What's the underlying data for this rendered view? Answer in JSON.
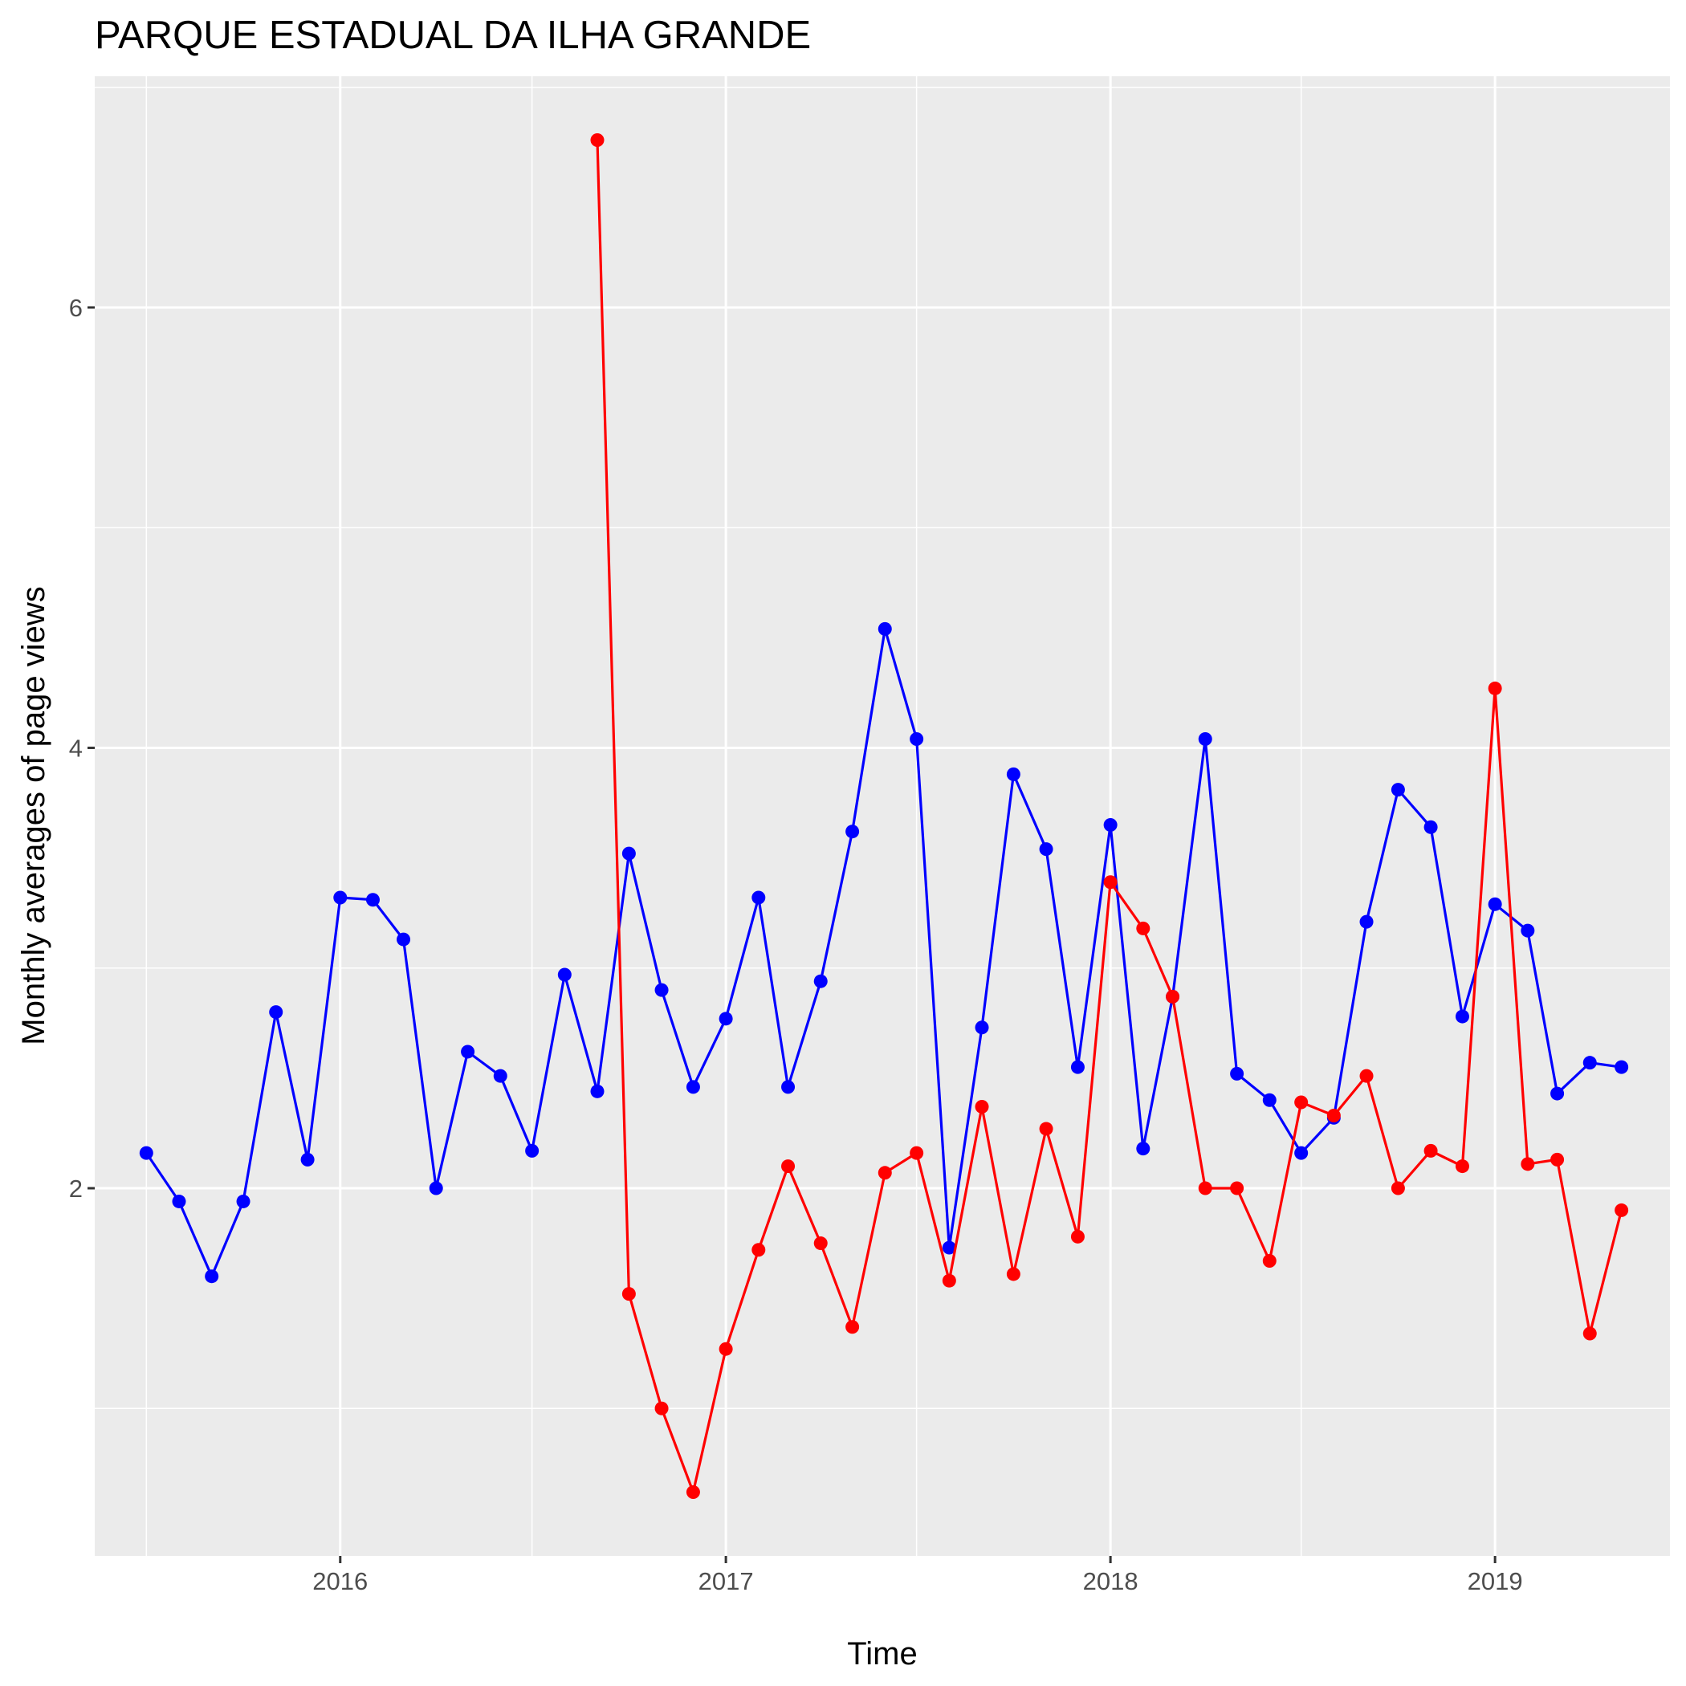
{
  "chart_data": {
    "type": "line",
    "title": "PARQUE ESTADUAL DA ILHA GRANDE",
    "xlabel": "Time",
    "ylabel": "Monthly averages of page views",
    "x_ticks": [
      "2016",
      "2017",
      "2018",
      "2019"
    ],
    "y_ticks": [
      2,
      4,
      6
    ],
    "xlim": [
      "2015-05-13",
      "2019-06-16"
    ],
    "ylim": [
      0.33,
      7.05
    ],
    "grid": true,
    "legend": "none",
    "series": [
      {
        "color": "#0000ff",
        "points": [
          [
            "2015-07-01",
            2.16
          ],
          [
            "2015-08-01",
            1.94
          ],
          [
            "2015-09-01",
            1.6
          ],
          [
            "2015-10-01",
            1.94
          ],
          [
            "2015-11-01",
            2.8
          ],
          [
            "2015-12-01",
            2.13
          ],
          [
            "2016-01-01",
            3.32
          ],
          [
            "2016-02-01",
            3.31
          ],
          [
            "2016-03-01",
            3.13
          ],
          [
            "2016-04-01",
            2.0
          ],
          [
            "2016-05-01",
            2.62
          ],
          [
            "2016-06-01",
            2.51
          ],
          [
            "2016-07-01",
            2.17
          ],
          [
            "2016-08-01",
            2.97
          ],
          [
            "2016-09-01",
            2.44
          ],
          [
            "2016-10-01",
            3.52
          ],
          [
            "2016-11-01",
            2.9
          ],
          [
            "2016-12-01",
            2.46
          ],
          [
            "2017-01-01",
            2.77
          ],
          [
            "2017-02-01",
            3.32
          ],
          [
            "2017-03-01",
            2.46
          ],
          [
            "2017-04-01",
            2.94
          ],
          [
            "2017-05-01",
            3.62
          ],
          [
            "2017-06-01",
            4.54
          ],
          [
            "2017-07-01",
            4.04
          ],
          [
            "2017-08-01",
            1.73
          ],
          [
            "2017-09-01",
            2.73
          ],
          [
            "2017-10-01",
            3.88
          ],
          [
            "2017-11-01",
            3.54
          ],
          [
            "2017-12-01",
            2.55
          ],
          [
            "2018-01-01",
            3.65
          ],
          [
            "2018-02-01",
            2.18
          ],
          [
            "2018-03-01",
            2.87
          ],
          [
            "2018-04-01",
            4.04
          ],
          [
            "2018-05-01",
            2.52
          ],
          [
            "2018-06-01",
            2.4
          ],
          [
            "2018-07-01",
            2.16
          ],
          [
            "2018-08-01",
            2.32
          ],
          [
            "2018-09-01",
            3.21
          ],
          [
            "2018-10-01",
            3.81
          ],
          [
            "2018-11-01",
            3.64
          ],
          [
            "2018-12-01",
            2.78
          ],
          [
            "2019-01-01",
            3.29
          ],
          [
            "2019-02-01",
            3.17
          ],
          [
            "2019-03-01",
            2.43
          ],
          [
            "2019-04-01",
            2.57
          ],
          [
            "2019-05-01",
            2.55
          ]
        ]
      },
      {
        "color": "#ff0000",
        "points": [
          [
            "2016-09-01",
            6.76
          ],
          [
            "2016-10-01",
            1.52
          ],
          [
            "2016-11-01",
            1.0
          ],
          [
            "2016-12-01",
            0.62
          ],
          [
            "2017-01-01",
            1.27
          ],
          [
            "2017-02-01",
            1.72
          ],
          [
            "2017-03-01",
            2.1
          ],
          [
            "2017-04-01",
            1.75
          ],
          [
            "2017-05-01",
            1.37
          ],
          [
            "2017-06-01",
            2.07
          ],
          [
            "2017-07-01",
            2.16
          ],
          [
            "2017-08-01",
            1.58
          ],
          [
            "2017-09-01",
            2.37
          ],
          [
            "2017-10-01",
            1.61
          ],
          [
            "2017-11-01",
            2.27
          ],
          [
            "2017-12-01",
            1.78
          ],
          [
            "2018-01-01",
            3.39
          ],
          [
            "2018-02-01",
            3.18
          ],
          [
            "2018-03-01",
            2.87
          ],
          [
            "2018-04-01",
            2.0
          ],
          [
            "2018-05-01",
            2.0
          ],
          [
            "2018-06-01",
            1.67
          ],
          [
            "2018-07-01",
            2.39
          ],
          [
            "2018-08-01",
            2.33
          ],
          [
            "2018-09-01",
            2.51
          ],
          [
            "2018-10-01",
            2.0
          ],
          [
            "2018-11-01",
            2.17
          ],
          [
            "2018-12-01",
            2.1
          ],
          [
            "2019-01-01",
            4.27
          ],
          [
            "2019-02-01",
            2.11
          ],
          [
            "2019-03-01",
            2.13
          ],
          [
            "2019-04-01",
            1.34
          ],
          [
            "2019-05-01",
            1.9
          ]
        ]
      }
    ]
  }
}
